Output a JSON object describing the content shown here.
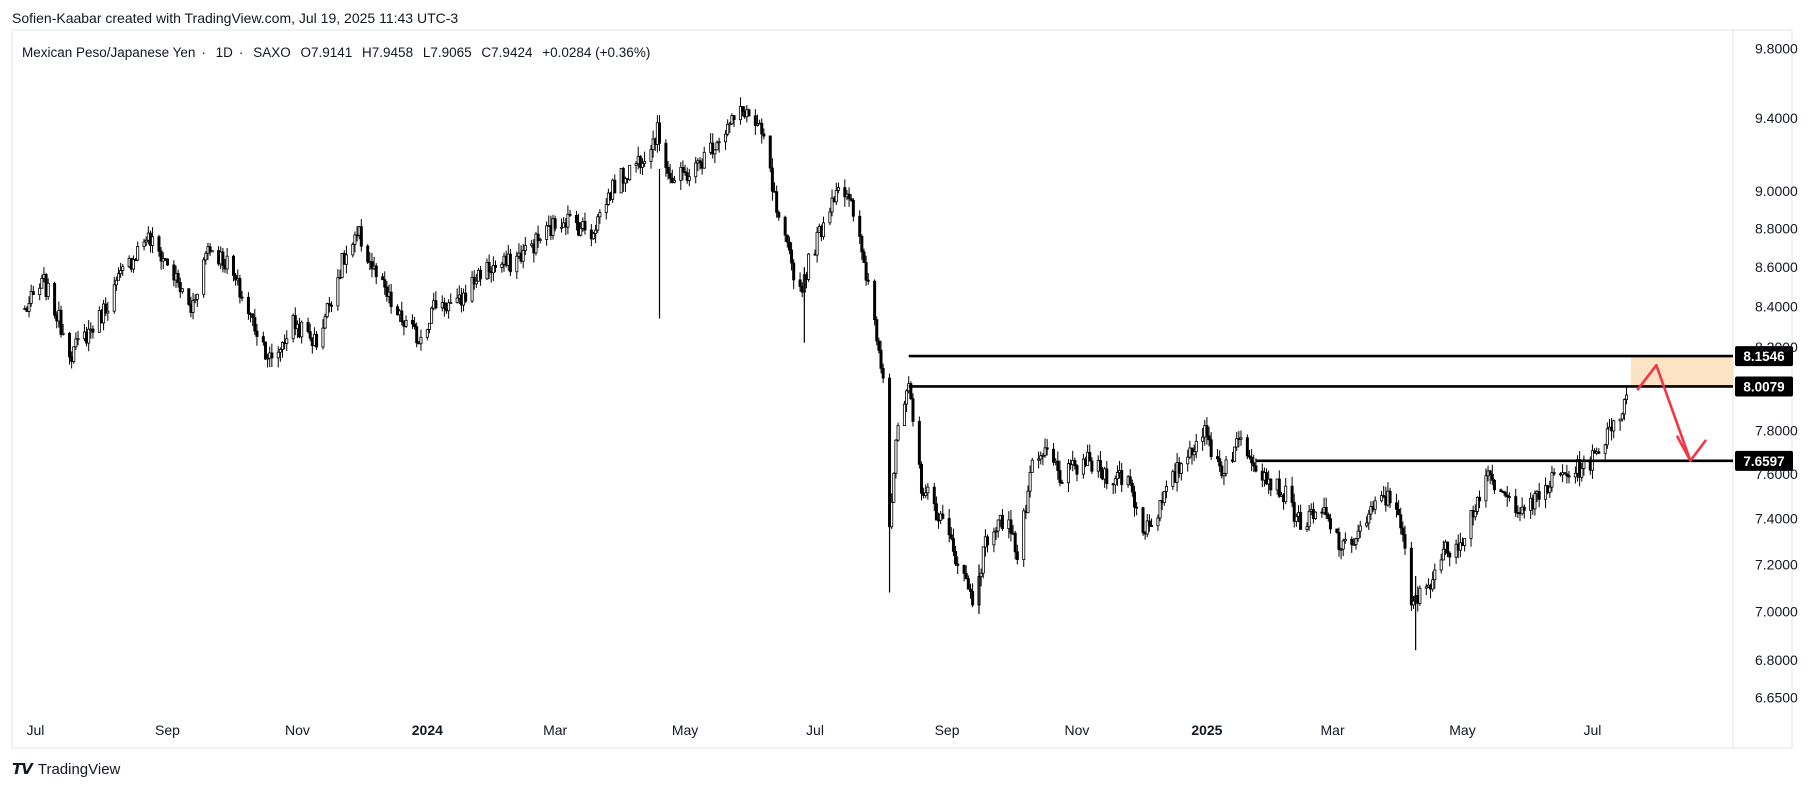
{
  "header": {
    "attribution": "Sofien-Kaabar created with TradingView.com, Jul 19, 2025 11:43 UTC-3"
  },
  "legend": {
    "symbol": "Mexican Peso/Japanese Yen",
    "interval": "1D",
    "exchange": "SAXO",
    "open": "O7.9141",
    "high": "H7.9458",
    "low": "L7.9065",
    "close": "C7.9424",
    "change": "+0.0284 (+0.36%)"
  },
  "footer": {
    "logo_text": "TradingView"
  },
  "colors": {
    "candle": "#000000",
    "level_line": "#000000",
    "zone_fill": "#fbe3c4",
    "arrow": "#f23645",
    "price_label_bg": "#000000",
    "price_label_text": "#ffffff",
    "axis_text": "#131722"
  },
  "chart_data": {
    "type": "candlestick",
    "symbol": "Mexican Peso/Japanese Yen",
    "interval": "1D",
    "y_axis": {
      "scale": "log",
      "ticks": [
        "9.8000",
        "9.4000",
        "9.0000",
        "8.8000",
        "8.6000",
        "8.4000",
        "8.2000",
        "7.8000",
        "7.6000",
        "7.4000",
        "7.2000",
        "7.0000",
        "6.8000",
        "6.6500"
      ],
      "range": [
        6.6,
        9.85
      ]
    },
    "x_axis": {
      "labels": [
        {
          "label": "Jul",
          "date": "2023-07-01",
          "bold": false
        },
        {
          "label": "Sep",
          "date": "2023-09-01",
          "bold": false
        },
        {
          "label": "Nov",
          "date": "2023-11-01",
          "bold": false
        },
        {
          "label": "2024",
          "date": "2024-01-01",
          "bold": true
        },
        {
          "label": "Mar",
          "date": "2024-03-01",
          "bold": false
        },
        {
          "label": "May",
          "date": "2024-05-01",
          "bold": false
        },
        {
          "label": "Jul",
          "date": "2024-07-01",
          "bold": false
        },
        {
          "label": "Sep",
          "date": "2024-09-01",
          "bold": false
        },
        {
          "label": "Nov",
          "date": "2024-11-01",
          "bold": false
        },
        {
          "label": "2025",
          "date": "2025-01-01",
          "bold": true
        },
        {
          "label": "Mar",
          "date": "2025-03-01",
          "bold": false
        },
        {
          "label": "May",
          "date": "2025-05-01",
          "bold": false
        },
        {
          "label": "Jul",
          "date": "2025-07-01",
          "bold": false
        }
      ]
    },
    "price_path": [
      [
        "2023-06-26",
        8.38
      ],
      [
        "2023-07-05",
        8.52
      ],
      [
        "2023-07-18",
        8.17
      ],
      [
        "2023-07-31",
        8.34
      ],
      [
        "2023-08-10",
        8.55
      ],
      [
        "2023-08-22",
        8.76
      ],
      [
        "2023-09-01",
        8.62
      ],
      [
        "2023-09-12",
        8.38
      ],
      [
        "2023-09-20",
        8.71
      ],
      [
        "2023-09-29",
        8.62
      ],
      [
        "2023-10-10",
        8.35
      ],
      [
        "2023-10-20",
        8.12
      ],
      [
        "2023-10-30",
        8.32
      ],
      [
        "2023-11-10",
        8.22
      ],
      [
        "2023-11-22",
        8.62
      ],
      [
        "2023-11-30",
        8.76
      ],
      [
        "2023-12-08",
        8.55
      ],
      [
        "2023-12-18",
        8.35
      ],
      [
        "2023-12-28",
        8.24
      ],
      [
        "2024-01-05",
        8.42
      ],
      [
        "2024-01-15",
        8.4
      ],
      [
        "2024-01-26",
        8.58
      ],
      [
        "2024-02-09",
        8.62
      ],
      [
        "2024-02-20",
        8.72
      ],
      [
        "2024-03-05",
        8.86
      ],
      [
        "2024-03-18",
        8.78
      ],
      [
        "2024-03-28",
        9.02
      ],
      [
        "2024-04-10",
        9.18
      ],
      [
        "2024-04-18",
        9.32
      ],
      [
        "2024-04-25",
        9.05
      ],
      [
        "2024-05-06",
        9.12
      ],
      [
        "2024-05-17",
        9.3
      ],
      [
        "2024-05-29",
        9.45
      ],
      [
        "2024-06-07",
        9.28
      ],
      [
        "2024-06-14",
        8.82
      ],
      [
        "2024-06-24",
        8.48
      ],
      [
        "2024-06-28",
        8.62
      ],
      [
        "2024-07-08",
        8.93
      ],
      [
        "2024-07-12",
        9.05
      ],
      [
        "2024-07-19",
        8.88
      ],
      [
        "2024-07-26",
        8.52
      ],
      [
        "2024-08-02",
        8.08
      ],
      [
        "2024-08-05",
        7.38
      ],
      [
        "2024-08-09",
        7.82
      ],
      [
        "2024-08-14",
        7.98
      ],
      [
        "2024-08-20",
        7.55
      ],
      [
        "2024-08-28",
        7.42
      ],
      [
        "2024-09-06",
        7.22
      ],
      [
        "2024-09-13",
        7.05
      ],
      [
        "2024-09-20",
        7.32
      ],
      [
        "2024-09-30",
        7.42
      ],
      [
        "2024-10-04",
        7.22
      ],
      [
        "2024-10-11",
        7.62
      ],
      [
        "2024-10-18",
        7.7
      ],
      [
        "2024-10-25",
        7.58
      ],
      [
        "2024-11-05",
        7.66
      ],
      [
        "2024-11-14",
        7.6
      ],
      [
        "2024-11-25",
        7.58
      ],
      [
        "2024-12-02",
        7.35
      ],
      [
        "2024-12-10",
        7.45
      ],
      [
        "2024-12-20",
        7.65
      ],
      [
        "2024-12-30",
        7.8
      ],
      [
        "2025-01-08",
        7.62
      ],
      [
        "2025-01-17",
        7.76
      ],
      [
        "2025-01-28",
        7.6
      ],
      [
        "2025-02-07",
        7.5
      ],
      [
        "2025-02-14",
        7.38
      ],
      [
        "2025-02-25",
        7.42
      ],
      [
        "2025-03-06",
        7.26
      ],
      [
        "2025-03-14",
        7.35
      ],
      [
        "2025-03-25",
        7.5
      ],
      [
        "2025-04-01",
        7.45
      ],
      [
        "2025-04-07",
        7.02
      ],
      [
        "2025-04-14",
        7.1
      ],
      [
        "2025-04-22",
        7.25
      ],
      [
        "2025-05-01",
        7.32
      ],
      [
        "2025-05-12",
        7.58
      ],
      [
        "2025-05-22",
        7.48
      ],
      [
        "2025-06-02",
        7.45
      ],
      [
        "2025-06-13",
        7.58
      ],
      [
        "2025-06-24",
        7.62
      ],
      [
        "2025-07-03",
        7.68
      ],
      [
        "2025-07-09",
        7.82
      ],
      [
        "2025-07-18",
        7.94
      ]
    ],
    "wicks": [
      {
        "date": "2024-04-19",
        "high": 9.12,
        "low": 8.34
      },
      {
        "date": "2024-06-26",
        "high": 8.6,
        "low": 8.22
      },
      {
        "date": "2024-08-05",
        "high": 7.45,
        "low": 7.08
      },
      {
        "date": "2024-09-16",
        "high": 7.2,
        "low": 6.99
      },
      {
        "date": "2025-04-09",
        "high": 7.15,
        "low": 6.84
      }
    ],
    "levels": [
      {
        "label": "8.1546",
        "value": 8.1546,
        "start": "2024-08-14",
        "end": "2025-08-31"
      },
      {
        "label": "8.0079",
        "value": 8.0079,
        "start": "2024-08-14",
        "end": "2025-08-31"
      },
      {
        "label": "7.6597",
        "value": 7.6597,
        "start": "2025-01-24",
        "end": "2025-08-31"
      }
    ],
    "zone": {
      "from_date": "2025-07-19",
      "to_date": "2025-08-31",
      "low": 8.0079,
      "high": 8.1546
    },
    "projection": [
      {
        "date": "2025-07-22",
        "value": 7.99
      },
      {
        "date": "2025-07-31",
        "value": 8.11
      },
      {
        "date": "2025-08-16",
        "value": 7.66
      }
    ],
    "grid": false,
    "legend_position": "top-left"
  }
}
